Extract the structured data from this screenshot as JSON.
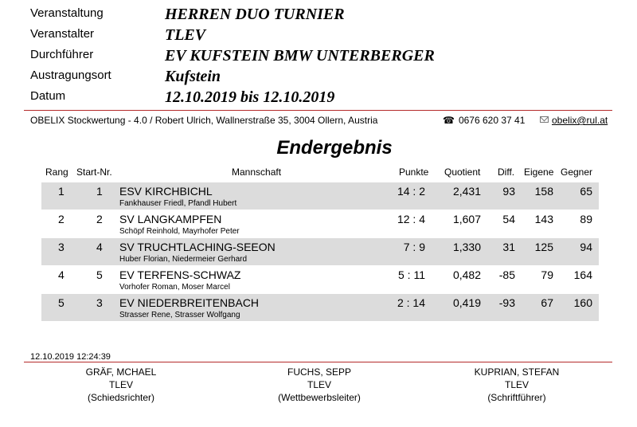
{
  "header": {
    "fields": [
      {
        "label": "Veranstaltung",
        "value": "HERREN DUO TURNIER"
      },
      {
        "label": "Veranstalter",
        "value": "TLEV"
      },
      {
        "label": "Durchführer",
        "value": "EV KUFSTEIN BMW UNTERBERGER"
      },
      {
        "label": "Austragungsort",
        "value": "Kufstein"
      },
      {
        "label": "Datum",
        "value": "12.10.2019 bis 12.10.2019"
      }
    ]
  },
  "org": {
    "text": "OBELIX Stockwertung - 4.0 / Robert Ulrich, Wallnerstraße 35, 3004 Ollern, Austria",
    "phone": "0676 620 37 41",
    "email": "obelix@rul.at",
    "phone_icon": "telephone-icon",
    "email_icon": "envelope-icon"
  },
  "title": "Endergebnis",
  "table": {
    "headers": {
      "rang": "Rang",
      "start": "Start-Nr.",
      "team": "Mannschaft",
      "punkte": "Punkte",
      "quotient": "Quotient",
      "diff": "Diff.",
      "eigene": "Eigene",
      "gegner": "Gegner"
    },
    "rows": [
      {
        "rang": "1",
        "start": "1",
        "team": "ESV KIRCHBICHL",
        "players": "Fankhauser Friedl, Pfandl Hubert",
        "punkte": "14 : 2",
        "quotient": "2,431",
        "diff": "93",
        "eigene": "158",
        "gegner": "65"
      },
      {
        "rang": "2",
        "start": "2",
        "team": "SV LANGKAMPFEN",
        "players": "Schöpf Reinhold, Mayrhofer Peter",
        "punkte": "12 : 4",
        "quotient": "1,607",
        "diff": "54",
        "eigene": "143",
        "gegner": "89"
      },
      {
        "rang": "3",
        "start": "4",
        "team": "SV TRUCHTLACHING-SEEON",
        "players": "Huber Florian, Niedermeier Gerhard",
        "punkte": "7 : 9",
        "quotient": "1,330",
        "diff": "31",
        "eigene": "125",
        "gegner": "94"
      },
      {
        "rang": "4",
        "start": "5",
        "team": "EV TERFENS-SCHWAZ",
        "players": "Vorhofer Roman, Moser Marcel",
        "punkte": "5 : 11",
        "quotient": "0,482",
        "diff": "-85",
        "eigene": "79",
        "gegner": "164"
      },
      {
        "rang": "5",
        "start": "3",
        "team": "EV NIEDERBREITENBACH",
        "players": "Strasser Rene, Strasser Wolfgang",
        "punkte": "2 : 14",
        "quotient": "0,419",
        "diff": "-93",
        "eigene": "67",
        "gegner": "160"
      }
    ]
  },
  "footer": {
    "timestamp": "12.10.2019 12:24:39",
    "officials": [
      {
        "name": "GRÄF, MCHAEL",
        "club": "TLEV",
        "role": "(Schiedsrichter)"
      },
      {
        "name": "FUCHS, SEPP",
        "club": "TLEV",
        "role": "(Wettbewerbsleiter)"
      },
      {
        "name": "KUPRIAN, STEFAN",
        "club": "TLEV",
        "role": "(Schriftführer)"
      }
    ]
  },
  "colors": {
    "rule": "#b52a2a",
    "row_shade": "#dcdcdc"
  }
}
